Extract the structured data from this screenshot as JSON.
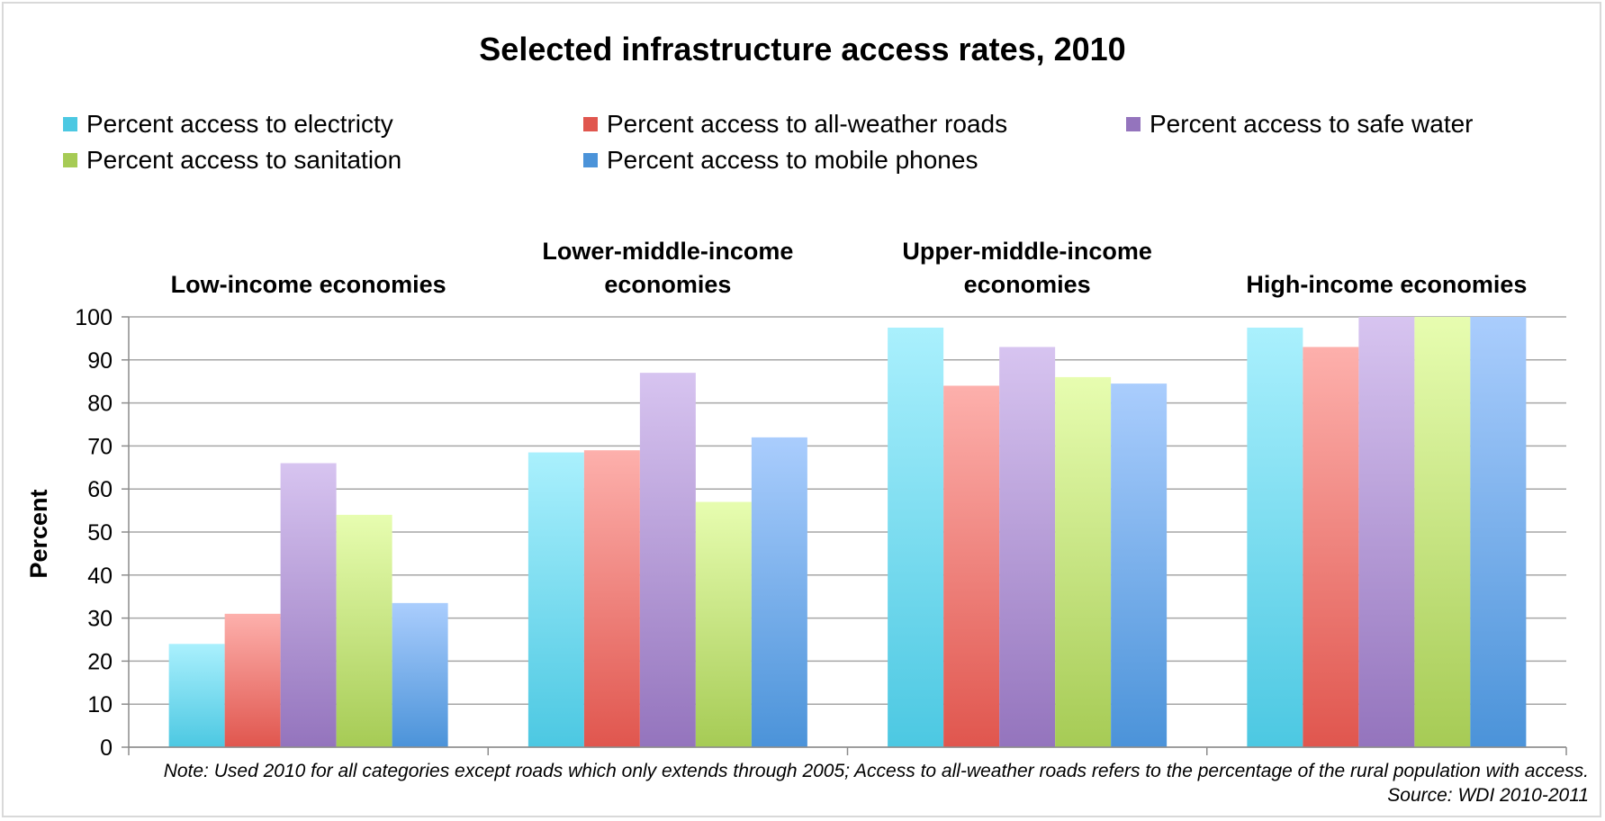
{
  "chart_data": {
    "type": "bar",
    "title": "Selected infrastructure access rates, 2010",
    "ylabel": "Percent",
    "xlabel": "",
    "ylim": [
      0,
      100
    ],
    "yticks": [
      0,
      10,
      20,
      30,
      40,
      50,
      60,
      70,
      80,
      90,
      100
    ],
    "grid": true,
    "legend_position": "top",
    "categories": [
      [
        "Low-income economies"
      ],
      [
        "Lower-middle-income",
        "economies"
      ],
      [
        "Upper-middle-income",
        "economies"
      ],
      [
        "High-income economies"
      ]
    ],
    "series": [
      {
        "name": "Percent access to electricty",
        "color": "#4cc8e2",
        "light": "#aaf0fd",
        "values": [
          24,
          68.5,
          97.5,
          97.5
        ]
      },
      {
        "name": "Percent access to all-weather roads",
        "color": "#e0564e",
        "light": "#fdb0ac",
        "values": [
          31,
          69,
          84,
          93
        ]
      },
      {
        "name": "Percent access to safe water",
        "color": "#9474bd",
        "light": "#d7c4f0",
        "values": [
          66,
          87,
          93,
          100
        ]
      },
      {
        "name": "Percent access to sanitation",
        "color": "#a6cb55",
        "light": "#e7fdb0",
        "values": [
          54,
          57,
          86,
          100
        ]
      },
      {
        "name": "Percent access to mobile phones",
        "color": "#4b93d9",
        "light": "#aacdfd",
        "values": [
          33.5,
          72,
          84.5,
          100
        ]
      }
    ],
    "note": "Note: Used 2010 for all categories except roads which only extends through 2005; Access to all-weather roads refers to the percentage of the rural population with access.",
    "source": "Source: WDI 2010-2011"
  }
}
